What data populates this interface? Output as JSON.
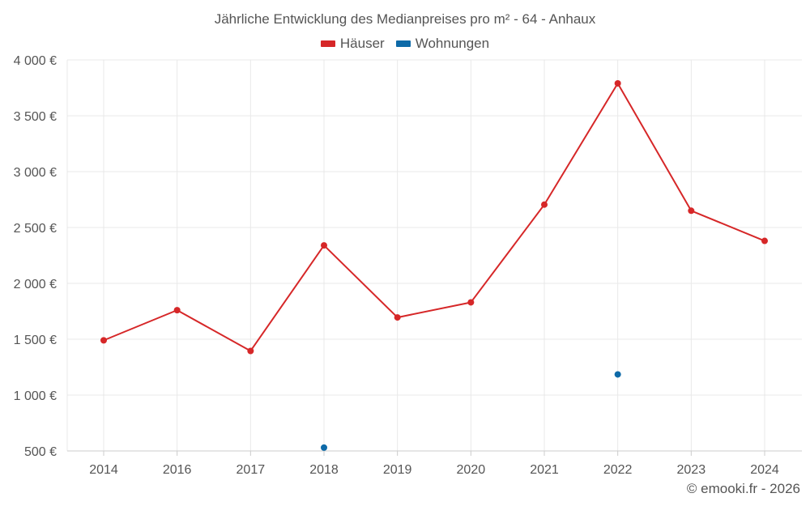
{
  "chart_data": {
    "type": "line",
    "title": "Jährliche Entwicklung des Medianpreises pro m² - 64 - Anhaux",
    "categories": [
      "2014",
      "2016",
      "2017",
      "2018",
      "2019",
      "2020",
      "2021",
      "2022",
      "2023",
      "2024"
    ],
    "ylim": [
      500,
      4000
    ],
    "yticks": [
      500,
      1000,
      1500,
      2000,
      2500,
      3000,
      3500,
      4000
    ],
    "ytick_labels": [
      "500 €",
      "1 000 €",
      "1 500 €",
      "2 000 €",
      "2 500 €",
      "3 000 €",
      "3 500 €",
      "4 000 €"
    ],
    "grid": true,
    "legend_position": "top-center",
    "series": [
      {
        "name": "Häuser",
        "color": "#d62728",
        "values": [
          1490,
          1760,
          1395,
          2340,
          1695,
          1830,
          2705,
          3790,
          2650,
          2380
        ]
      },
      {
        "name": "Wohnungen",
        "color": "#0e6aa8",
        "values": [
          null,
          null,
          null,
          530,
          null,
          null,
          null,
          1185,
          null,
          null
        ]
      }
    ]
  },
  "footer": {
    "copyright": "© emooki.fr - 2026"
  }
}
